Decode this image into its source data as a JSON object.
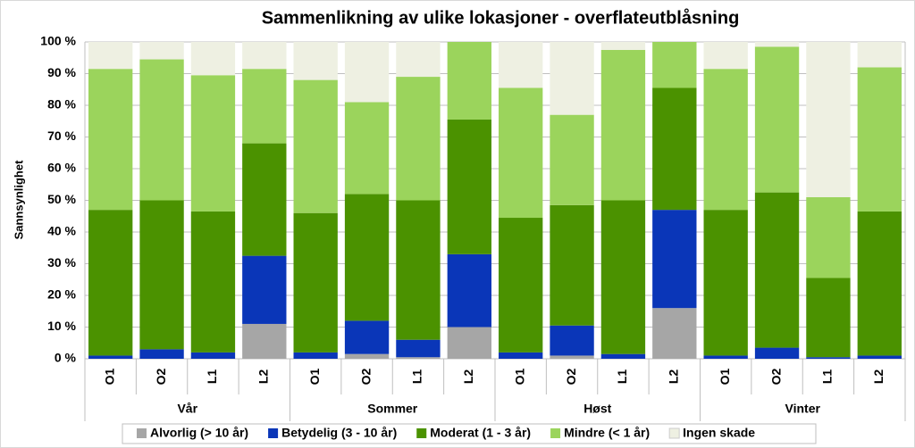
{
  "chart_data": {
    "type": "stacked_bar",
    "title": "Sammenlikning av ulike lokasjoner - overflateutblåsning",
    "y_label": "Sannsynlighet",
    "categories": [
      "O1",
      "O2",
      "L1",
      "L2",
      "O1",
      "O2",
      "L1",
      "L2",
      "O1",
      "O2",
      "L1",
      "L2",
      "O1",
      "O2",
      "L1",
      "L2"
    ],
    "groups": [
      "Vår",
      "Sommer",
      "Høst",
      "Vinter"
    ],
    "series": [
      {
        "name": "Alvorlig (> 10 år)",
        "color": "#a6a6a6",
        "values": [
          0,
          0,
          0,
          11,
          0,
          1.5,
          0.5,
          10,
          0,
          1,
          0,
          16,
          0,
          0,
          0,
          0
        ]
      },
      {
        "name": "Betydelig (3 - 10 år)",
        "color": "#0a36b8",
        "values": [
          1,
          3,
          2,
          21.5,
          2,
          10.5,
          5.5,
          23,
          2,
          9.5,
          1.5,
          31,
          1,
          3.5,
          0.5,
          1
        ]
      },
      {
        "name": "Moderat (1 - 3 år)",
        "color": "#4b9200",
        "values": [
          46,
          47,
          44.5,
          35.5,
          44,
          40,
          44,
          42.5,
          42.5,
          38,
          48.5,
          38.5,
          46,
          49,
          25,
          45.5
        ]
      },
      {
        "name": "Mindre (< 1 år)",
        "color": "#9bd45c",
        "values": [
          44.5,
          44.5,
          43,
          23.5,
          42,
          29,
          39,
          24.5,
          41,
          28.5,
          47.5,
          14.5,
          44.5,
          46,
          25.5,
          45.5
        ]
      },
      {
        "name": "Ingen skade",
        "color": "#eef0e2",
        "values": [
          8.5,
          5.5,
          10.5,
          8.5,
          12,
          19,
          11,
          0,
          14.5,
          23,
          2.5,
          0,
          8.5,
          1.5,
          49,
          8
        ]
      }
    ],
    "ylim": [
      0,
      100
    ],
    "yticks": [
      {
        "value": 0,
        "label": "0 %"
      },
      {
        "value": 10,
        "label": "10 %"
      },
      {
        "value": 20,
        "label": "20 %"
      },
      {
        "value": 30,
        "label": "30 %"
      },
      {
        "value": 40,
        "label": "40 %"
      },
      {
        "value": 50,
        "label": "50 %"
      },
      {
        "value": 60,
        "label": "60 %"
      },
      {
        "value": 70,
        "label": "70 %"
      },
      {
        "value": 80,
        "label": "80 %"
      },
      {
        "value": 90,
        "label": "90 %"
      },
      {
        "value": 100,
        "label": "100 %"
      }
    ],
    "grid": true
  }
}
